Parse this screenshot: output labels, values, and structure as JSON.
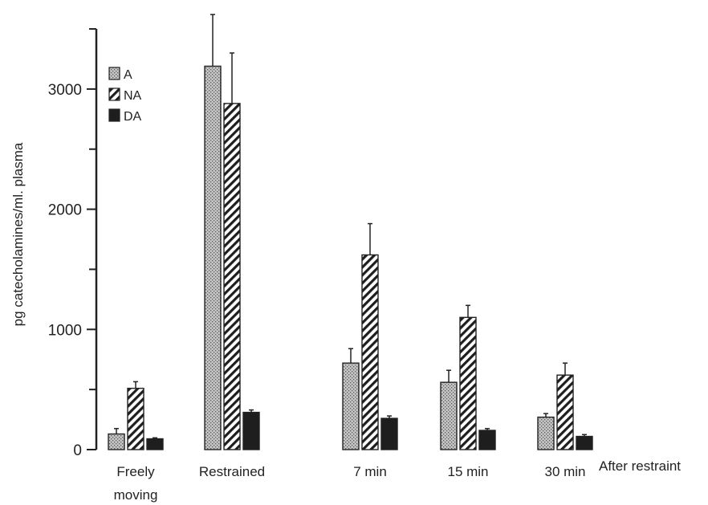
{
  "chart_data": {
    "type": "bar",
    "title": "",
    "xlabel": "",
    "ylabel": "pg catecholamines/ml. plasma",
    "categories": [
      "Freely moving",
      "Restrained",
      "7 min",
      "15 min",
      "30 min"
    ],
    "category_lines": [
      [
        "Freely",
        "moving"
      ],
      [
        "Restrained"
      ],
      [
        "7 min"
      ],
      [
        "15 min"
      ],
      [
        "30 min"
      ]
    ],
    "annotation": "After restraint",
    "ylim": [
      0,
      3500
    ],
    "yticks": [
      0,
      1000,
      2000,
      3000
    ],
    "grid": false,
    "legend_position": "top-left",
    "series": [
      {
        "name": "A",
        "values": [
          130,
          3190,
          720,
          560,
          270
        ],
        "errors": [
          45,
          600,
          120,
          100,
          30
        ],
        "pattern": "stipple"
      },
      {
        "name": "NA",
        "values": [
          510,
          2880,
          1620,
          1100,
          620
        ],
        "errors": [
          55,
          420,
          260,
          100,
          100
        ],
        "pattern": "hatch"
      },
      {
        "name": "DA",
        "values": [
          90,
          310,
          260,
          160,
          110
        ],
        "errors": [
          8,
          20,
          20,
          15,
          15
        ],
        "pattern": "solid"
      }
    ],
    "colors": {
      "axis": "#222222",
      "bar_fill": "#1e1e1e",
      "stipple_base": "#bdbdbd"
    }
  }
}
